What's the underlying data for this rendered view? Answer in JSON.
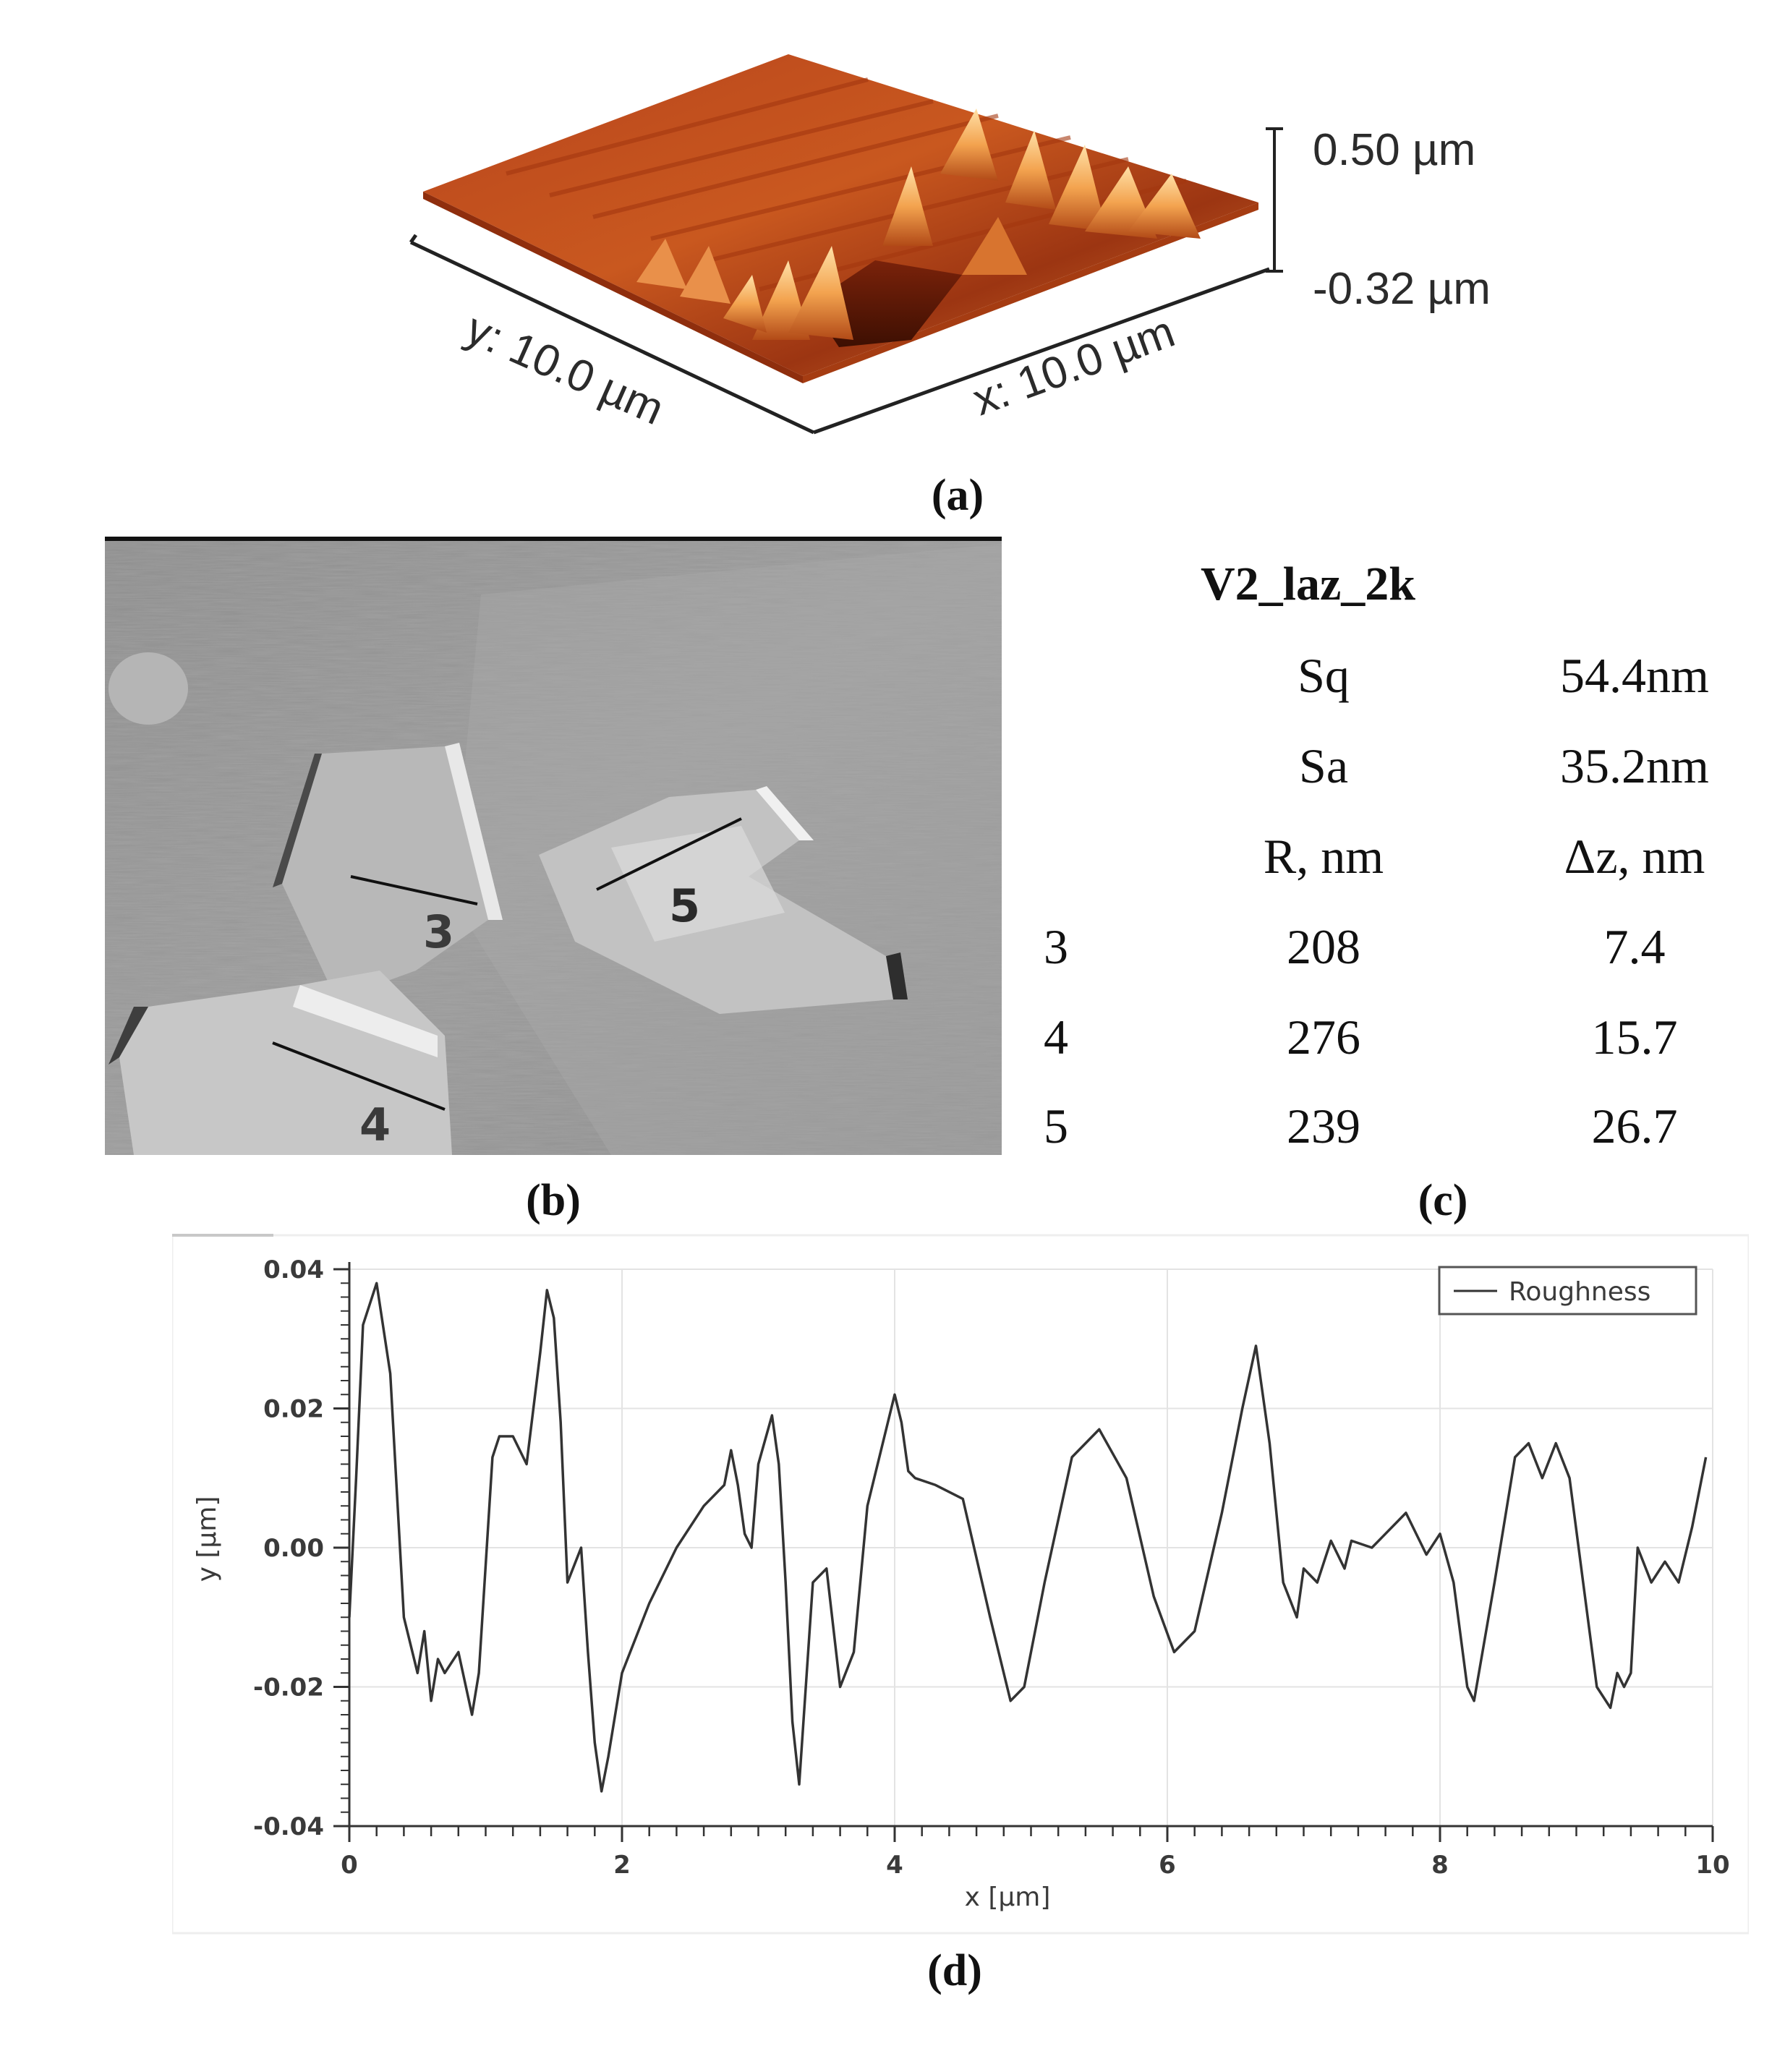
{
  "panel_a": {
    "scale_top": "0.50 µm",
    "scale_bottom": "-0.32 µm",
    "y_axis": "y: 10.0 µm",
    "x_axis": "x: 10.0 µm",
    "caption": "(a)"
  },
  "panel_b": {
    "markers": [
      "3",
      "4",
      "5"
    ],
    "caption": "(b)"
  },
  "panel_c": {
    "title": "V2_laz_2k",
    "summary": [
      {
        "label": "Sq",
        "value": "54.4nm"
      },
      {
        "label": "Sa",
        "value": "35.2nm"
      }
    ],
    "headers": [
      "R, nm",
      "Δz, nm"
    ],
    "rows": [
      {
        "id": "3",
        "r": "208",
        "dz": "7.4"
      },
      {
        "id": "4",
        "r": "276",
        "dz": "15.7"
      },
      {
        "id": "5",
        "r": "239",
        "dz": "26.7"
      }
    ],
    "caption": "(c)"
  },
  "panel_d": {
    "caption": "(d)"
  },
  "chart_data": {
    "type": "line",
    "title": "",
    "xlabel": "x [µm]",
    "ylabel": "y [µm]",
    "xlim": [
      0,
      10
    ],
    "ylim": [
      -0.04,
      0.04
    ],
    "xticks": [
      "0",
      "2",
      "4",
      "6",
      "8",
      "10"
    ],
    "yticks": [
      "0.04",
      "0.02",
      "0.00",
      "-0.02",
      "-0.04"
    ],
    "grid": true,
    "legend": "top-right",
    "series": [
      {
        "name": "Roughness",
        "color": "#333333",
        "x": [
          0.0,
          0.05,
          0.1,
          0.2,
          0.3,
          0.4,
          0.5,
          0.55,
          0.6,
          0.65,
          0.7,
          0.8,
          0.9,
          0.95,
          1.05,
          1.1,
          1.2,
          1.3,
          1.4,
          1.45,
          1.5,
          1.55,
          1.6,
          1.7,
          1.75,
          1.8,
          1.85,
          1.9,
          2.0,
          2.2,
          2.4,
          2.6,
          2.75,
          2.8,
          2.85,
          2.9,
          2.95,
          3.0,
          3.1,
          3.15,
          3.2,
          3.25,
          3.3,
          3.4,
          3.5,
          3.6,
          3.7,
          3.8,
          4.0,
          4.05,
          4.1,
          4.15,
          4.3,
          4.5,
          4.7,
          4.85,
          4.95,
          5.1,
          5.3,
          5.5,
          5.7,
          5.9,
          6.05,
          6.2,
          6.4,
          6.55,
          6.65,
          6.75,
          6.85,
          6.95,
          7.0,
          7.1,
          7.2,
          7.3,
          7.35,
          7.5,
          7.6,
          7.75,
          7.9,
          8.0,
          8.1,
          8.2,
          8.25,
          8.4,
          8.55,
          8.65,
          8.75,
          8.85,
          8.95,
          9.05,
          9.15,
          9.25,
          9.3,
          9.35,
          9.4,
          9.45,
          9.55,
          9.65,
          9.75,
          9.85,
          9.95
        ],
        "y": [
          -0.01,
          0.01,
          0.032,
          0.038,
          0.025,
          -0.01,
          -0.018,
          -0.012,
          -0.022,
          -0.016,
          -0.018,
          -0.015,
          -0.024,
          -0.018,
          0.013,
          0.016,
          0.016,
          0.012,
          0.028,
          0.037,
          0.033,
          0.018,
          -0.005,
          0.0,
          -0.015,
          -0.028,
          -0.035,
          -0.03,
          -0.018,
          -0.008,
          0.0,
          0.006,
          0.009,
          0.014,
          0.009,
          0.002,
          0.0,
          0.012,
          0.019,
          0.012,
          -0.005,
          -0.025,
          -0.034,
          -0.005,
          -0.003,
          -0.02,
          -0.015,
          0.006,
          0.022,
          0.018,
          0.011,
          0.01,
          0.009,
          0.007,
          -0.01,
          -0.022,
          -0.02,
          -0.005,
          0.013,
          0.017,
          0.01,
          -0.007,
          -0.015,
          -0.012,
          0.005,
          0.02,
          0.029,
          0.015,
          -0.005,
          -0.01,
          -0.003,
          -0.005,
          0.001,
          -0.003,
          0.001,
          0.0,
          0.002,
          0.005,
          -0.001,
          0.002,
          -0.005,
          -0.02,
          -0.022,
          -0.005,
          0.013,
          0.015,
          0.01,
          0.015,
          0.01,
          -0.005,
          -0.02,
          -0.023,
          -0.018,
          -0.02,
          -0.018,
          0.0,
          -0.005,
          -0.002,
          -0.005,
          0.003,
          0.013
        ]
      }
    ]
  }
}
